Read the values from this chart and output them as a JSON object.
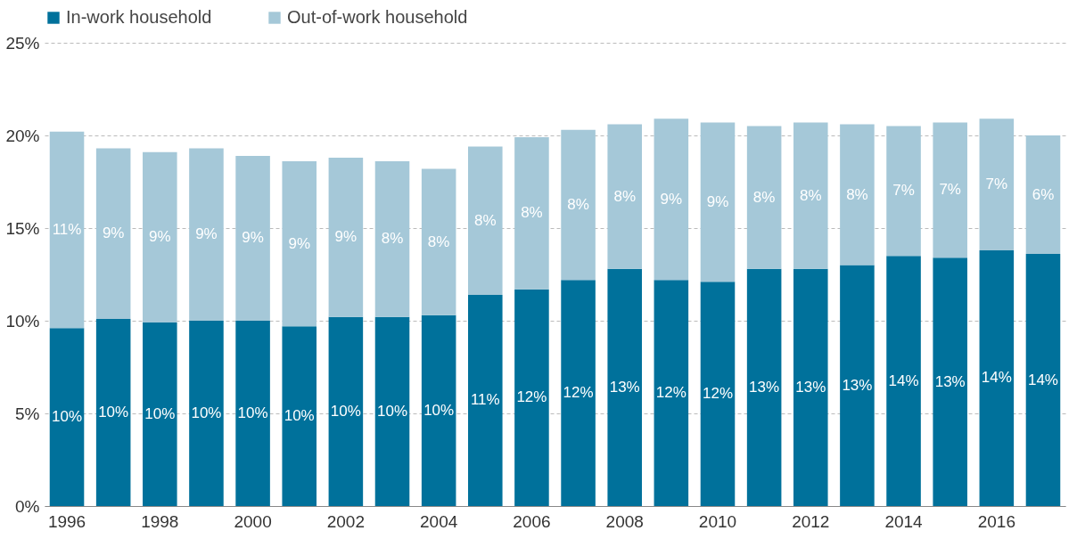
{
  "chart_data": {
    "type": "bar",
    "stacked": true,
    "categories": [
      "1996",
      null,
      "1998",
      null,
      "2000",
      null,
      "2002",
      null,
      "2004",
      null,
      "2006",
      null,
      "2008",
      null,
      "2010",
      null,
      "2012",
      null,
      "2014",
      null,
      "2016",
      null
    ],
    "series": [
      {
        "name": "In-work household",
        "color": "#00719b",
        "values": [
          9.6,
          10.1,
          9.9,
          10.0,
          10.0,
          9.7,
          10.2,
          10.2,
          10.3,
          11.4,
          11.7,
          12.2,
          12.8,
          12.2,
          12.1,
          12.8,
          12.8,
          13.0,
          13.5,
          13.4,
          13.8,
          13.6
        ],
        "value_labels": [
          "10%",
          "10%",
          "10%",
          "10%",
          "10%",
          "10%",
          "10%",
          "10%",
          "10%",
          "11%",
          "12%",
          "12%",
          "13%",
          "12%",
          "12%",
          "13%",
          "13%",
          "13%",
          "14%",
          "13%",
          "14%",
          "14%"
        ]
      },
      {
        "name": "Out-of-work household",
        "color": "#a5c8d8",
        "values": [
          10.6,
          9.2,
          9.2,
          9.3,
          8.9,
          8.9,
          8.6,
          8.4,
          7.9,
          8.0,
          8.2,
          8.1,
          7.8,
          8.7,
          8.6,
          7.7,
          7.9,
          7.6,
          7.0,
          7.3,
          7.1,
          6.4
        ],
        "value_labels": [
          "11%",
          "9%",
          "9%",
          "9%",
          "9%",
          "9%",
          "9%",
          "8%",
          "8%",
          "8%",
          "8%",
          "8%",
          "8%",
          "9%",
          "9%",
          "8%",
          "8%",
          "8%",
          "7%",
          "7%",
          "7%",
          "6%"
        ]
      }
    ],
    "ylim": [
      0,
      25
    ],
    "yticks": [
      {
        "value": 0,
        "label": "0%"
      },
      {
        "value": 5,
        "label": "5%"
      },
      {
        "value": 10,
        "label": "10%"
      },
      {
        "value": 15,
        "label": "15%"
      },
      {
        "value": 20,
        "label": "20%"
      },
      {
        "value": 25,
        "label": "25%"
      }
    ],
    "grid": "y",
    "legend": "top"
  }
}
